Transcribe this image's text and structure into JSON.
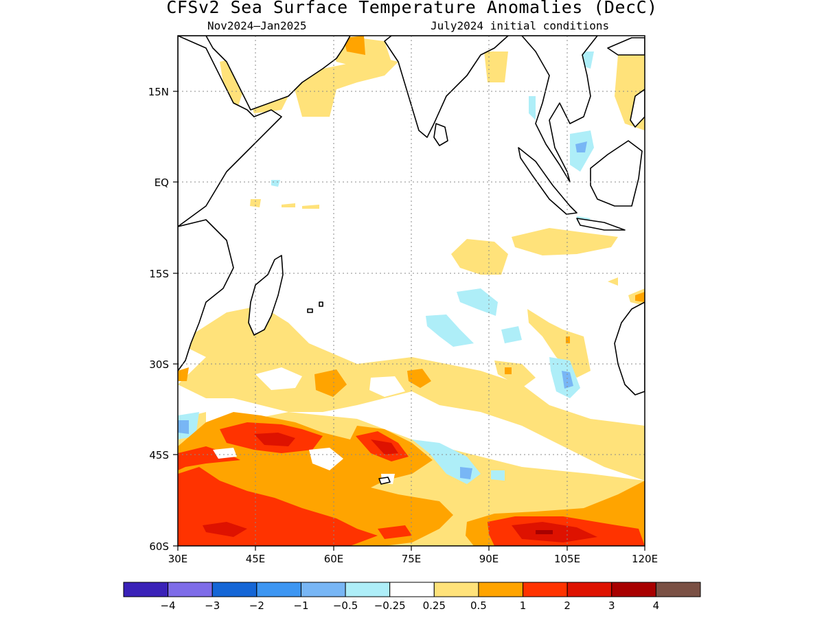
{
  "chart_data": {
    "type": "heatmap",
    "title": "CFSv2 Sea Surface Temperature Anomalies (DecC)",
    "subtitle_left": "Nov2024–Jan2025",
    "subtitle_right": "July2024 initial conditions",
    "x_ticks": [
      "30E",
      "45E",
      "60E",
      "75E",
      "90E",
      "105E",
      "120E"
    ],
    "y_ticks": [
      "15N",
      "EQ",
      "15S",
      "30S",
      "45S",
      "60S"
    ],
    "xlim": [
      30,
      120
    ],
    "ylim": [
      -60,
      24
    ],
    "colorbar": {
      "labels": [
        "−4",
        "−3",
        "−2",
        "−1",
        "−0.5",
        "−0.25",
        "0.25",
        "0.5",
        "1",
        "2",
        "3",
        "4"
      ],
      "colors": [
        "#3a22b8",
        "#7e6ce8",
        "#1566d6",
        "#3d96f2",
        "#78b6f5",
        "#aeeef8",
        "#ffffff",
        "#ffe27a",
        "#ffa400",
        "#ff3300",
        "#de1200",
        "#a80000",
        "#7a5044"
      ]
    }
  }
}
